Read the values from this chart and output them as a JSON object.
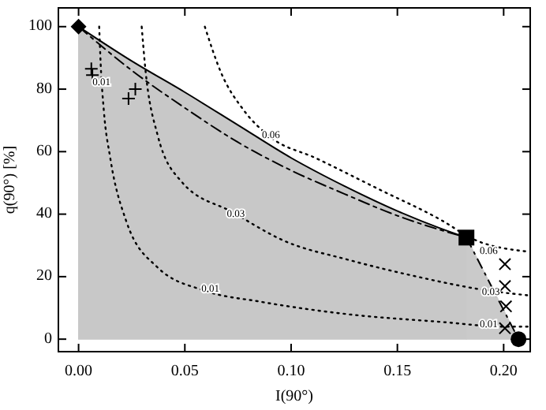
{
  "chart_data": {
    "type": "line",
    "xlabel": "I(90°)",
    "ylabel": "q(90°) [%]",
    "xlim": [
      -0.0095,
      0.2125
    ],
    "ylim": [
      -4,
      106
    ],
    "xticks": [
      {
        "value": 0,
        "label": "0.00"
      },
      {
        "value": 0.05,
        "label": "0.05"
      },
      {
        "value": 0.1,
        "label": "0.10"
      },
      {
        "value": 0.15,
        "label": "0.15"
      },
      {
        "value": 0.2,
        "label": "0.20"
      }
    ],
    "yticks": [
      0,
      20,
      40,
      60,
      80,
      100
    ],
    "grid": false,
    "series": [
      {
        "type": "area",
        "color": "#c8c8c8",
        "line_style": "solid",
        "x": [
          0,
          0.025,
          0.05,
          0.075,
          0.1,
          0.125,
          0.15,
          0.17,
          0.1825
        ],
        "values": [
          100,
          89,
          79,
          68.5,
          58,
          49,
          41,
          35.5,
          32.5
        ]
      },
      {
        "type": "area",
        "color": "#cacaca",
        "line_style": "dashed",
        "x": [
          0.1825,
          0.207
        ],
        "values": [
          32.5,
          0
        ]
      },
      {
        "color": "#000000",
        "line_style": "dotted",
        "x": [
          0.0097,
          0.0104,
          0.0119,
          0.0149,
          0.0223,
          0.0371,
          0.0594,
          0.0854,
          0.1263,
          0.1709,
          0.2006,
          0.2117
        ],
        "values": [
          100,
          88,
          73,
          58,
          38,
          23,
          15.5,
          12,
          8,
          5.5,
          4,
          4
        ]
      },
      {
        "color": "#000000",
        "line_style": "dotted",
        "x": [
          0.0297,
          0.0312,
          0.0371,
          0.0483,
          0.0728,
          0.0966,
          0.1263,
          0.156,
          0.1932,
          0.2117
        ],
        "values": [
          100,
          88,
          65.5,
          50.5,
          40.5,
          31.5,
          25.5,
          20.5,
          15.5,
          14
        ]
      },
      {
        "color": "#000000",
        "line_style": "dotted",
        "x": [
          0.0594,
          0.0669,
          0.078,
          0.0906,
          0.1114,
          0.1412,
          0.1709,
          0.1857,
          0.2117
        ],
        "values": [
          100,
          85.5,
          73,
          64.5,
          58,
          48,
          38,
          32,
          28
        ]
      },
      {
        "color": "#000000",
        "line_style": "dashed",
        "x": [
          0,
          0.025,
          0.05,
          0.075,
          0.1,
          0.125,
          0.15,
          0.1825
        ],
        "values": [
          100,
          86,
          74,
          63,
          54,
          46.5,
          39.5,
          32.5
        ]
      },
      {
        "type": "scatter",
        "color": "#000000",
        "marker": "diamond",
        "x": [
          0
        ],
        "values": [
          100
        ]
      },
      {
        "type": "scatter",
        "color": "#000000",
        "marker": "square",
        "x": [
          0.1825
        ],
        "values": [
          32.5
        ]
      },
      {
        "type": "scatter",
        "color": "#000000",
        "marker": "circle",
        "x": [
          0.207
        ],
        "values": [
          0
        ]
      },
      {
        "type": "scatter",
        "color": "#000000",
        "marker": "plus",
        "x": [
          0.006,
          0.0065,
          0.0235,
          0.0267
        ],
        "values": [
          86.5,
          84.5,
          77,
          80
        ]
      },
      {
        "type": "scatter",
        "color": "#000000",
        "marker": "cross",
        "x": [
          0.2006,
          0.2006,
          0.2011,
          0.2006
        ],
        "values": [
          24,
          17,
          10.5,
          3.5
        ]
      }
    ],
    "annotations": [
      {
        "text": "0.01",
        "x": 0.0108,
        "y": 82
      },
      {
        "text": "0.01",
        "x": 0.062,
        "y": 16
      },
      {
        "text": "0.01",
        "x": 0.193,
        "y": 4.5
      },
      {
        "text": "0.03",
        "x": 0.074,
        "y": 40
      },
      {
        "text": "0.03",
        "x": 0.194,
        "y": 15
      },
      {
        "text": "0.06",
        "x": 0.0905,
        "y": 65
      },
      {
        "text": "0.06",
        "x": 0.193,
        "y": 28
      }
    ]
  }
}
